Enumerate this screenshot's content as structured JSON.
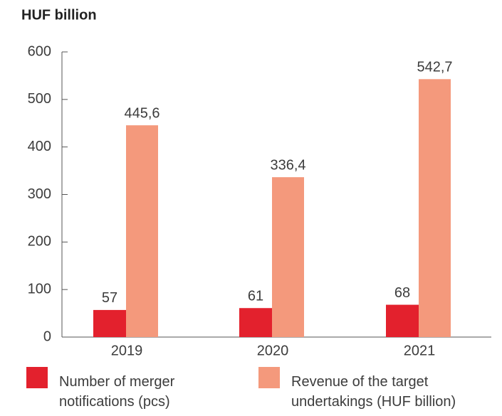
{
  "chart_data": {
    "type": "bar",
    "title": "HUF billion",
    "categories": [
      "2019",
      "2020",
      "2021"
    ],
    "series": [
      {
        "name": "Number of merger notifications (pcs)",
        "color": "#e3212d",
        "values": [
          57,
          61,
          68
        ]
      },
      {
        "name": "Revenue of the target undertakings (HUF billion)",
        "color": "#f4997c",
        "values": [
          445.6,
          336.4,
          542.7
        ],
        "value_labels": [
          "445,6",
          "336,4",
          "542,7"
        ]
      }
    ],
    "ylim": [
      0,
      600
    ],
    "yticks": [
      0,
      100,
      200,
      300,
      400,
      500,
      600
    ],
    "grid": false
  }
}
